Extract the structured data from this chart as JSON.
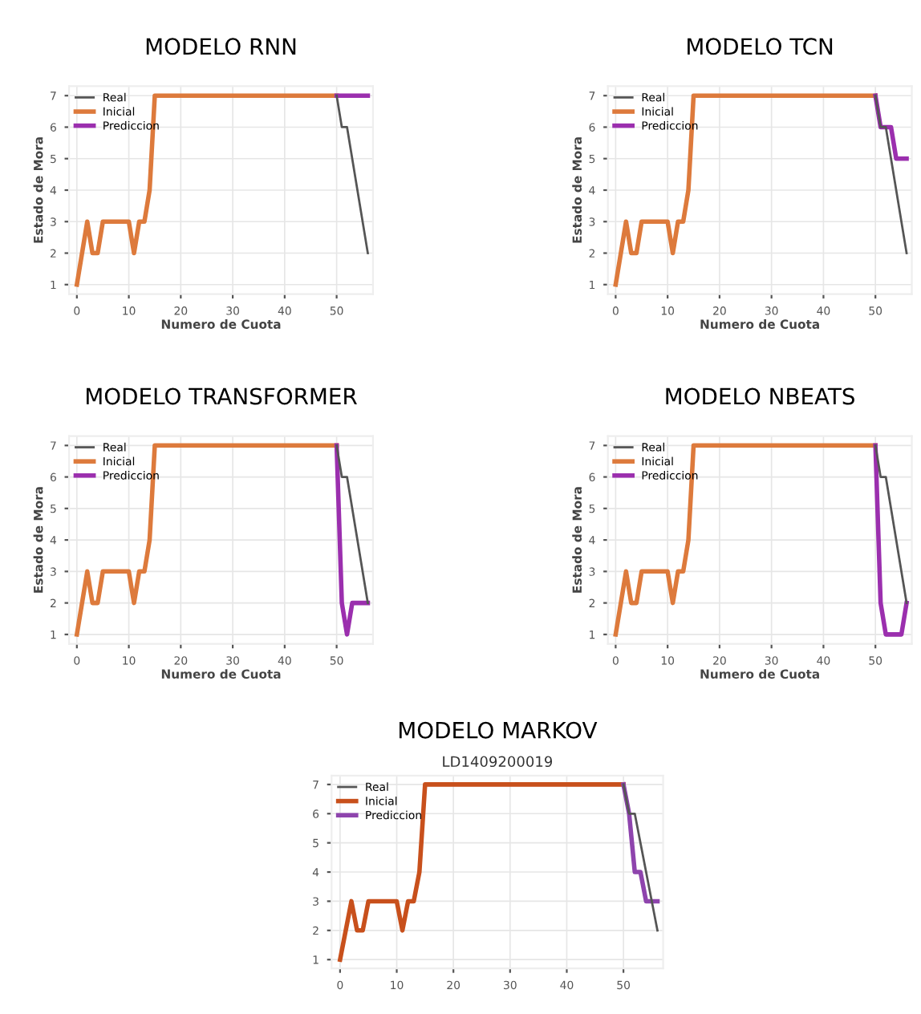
{
  "chart_data": [
    {
      "type": "line",
      "title": "MODELO RNN",
      "xlabel": "Numero de Cuota",
      "ylabel": "Estado de Mora",
      "xlim": [
        -1.5,
        57
      ],
      "ylim": [
        0.7,
        7.3
      ],
      "xticks": [
        0,
        10,
        20,
        30,
        40,
        50
      ],
      "yticks": [
        1,
        2,
        3,
        4,
        5,
        6,
        7
      ],
      "grid": true,
      "legend": "top left",
      "series": [
        {
          "name": "Real",
          "color": "#555555",
          "x": [
            50,
            51,
            52,
            56
          ],
          "values": [
            7,
            6,
            6,
            2
          ]
        },
        {
          "name": "Inicial",
          "color": "#dd7a3c",
          "x": [
            0,
            2,
            3,
            4,
            5,
            10,
            11,
            12,
            13,
            14,
            15,
            50
          ],
          "values": [
            1,
            3,
            2,
            2,
            3,
            3,
            2,
            3,
            3,
            4,
            7,
            7
          ]
        },
        {
          "name": "Prediccion",
          "color": "#9b2fae",
          "x": [
            50,
            56
          ],
          "values": [
            7,
            7
          ]
        }
      ]
    },
    {
      "type": "line",
      "title": "MODELO TCN",
      "xlabel": "Numero de Cuota",
      "ylabel": "Estado de Mora",
      "xlim": [
        -1.5,
        57
      ],
      "ylim": [
        0.7,
        7.3
      ],
      "xticks": [
        0,
        10,
        20,
        30,
        40,
        50
      ],
      "yticks": [
        1,
        2,
        3,
        4,
        5,
        6,
        7
      ],
      "grid": true,
      "legend": "top left",
      "series": [
        {
          "name": "Real",
          "color": "#555555",
          "x": [
            50,
            51,
            52,
            56
          ],
          "values": [
            7,
            6,
            6,
            2
          ]
        },
        {
          "name": "Inicial",
          "color": "#dd7a3c",
          "x": [
            0,
            2,
            3,
            4,
            5,
            10,
            11,
            12,
            13,
            14,
            15,
            50
          ],
          "values": [
            1,
            3,
            2,
            2,
            3,
            3,
            2,
            3,
            3,
            4,
            7,
            7
          ]
        },
        {
          "name": "Prediccion",
          "color": "#9b2fae",
          "x": [
            50,
            51,
            53,
            54,
            56
          ],
          "values": [
            7,
            6,
            6,
            5,
            5
          ]
        }
      ]
    },
    {
      "type": "line",
      "title": "MODELO TRANSFORMER",
      "xlabel": "Numero de Cuota",
      "ylabel": "Estado de Mora",
      "xlim": [
        -1.5,
        57
      ],
      "ylim": [
        0.7,
        7.3
      ],
      "xticks": [
        0,
        10,
        20,
        30,
        40,
        50
      ],
      "yticks": [
        1,
        2,
        3,
        4,
        5,
        6,
        7
      ],
      "grid": true,
      "legend": "top left",
      "series": [
        {
          "name": "Real",
          "color": "#555555",
          "x": [
            50,
            51,
            52,
            56
          ],
          "values": [
            7,
            6,
            6,
            2
          ]
        },
        {
          "name": "Inicial",
          "color": "#dd7a3c",
          "x": [
            0,
            2,
            3,
            4,
            5,
            10,
            11,
            12,
            13,
            14,
            15,
            50
          ],
          "values": [
            1,
            3,
            2,
            2,
            3,
            3,
            2,
            3,
            3,
            4,
            7,
            7
          ]
        },
        {
          "name": "Prediccion",
          "color": "#9b2fae",
          "x": [
            50,
            51,
            52,
            53,
            56
          ],
          "values": [
            7,
            2,
            1,
            2,
            2
          ]
        }
      ]
    },
    {
      "type": "line",
      "title": "MODELO NBEATS",
      "xlabel": "Numero de Cuota",
      "ylabel": "Estado de Mora",
      "xlim": [
        -1.5,
        57
      ],
      "ylim": [
        0.7,
        7.3
      ],
      "xticks": [
        0,
        10,
        20,
        30,
        40,
        50
      ],
      "yticks": [
        1,
        2,
        3,
        4,
        5,
        6,
        7
      ],
      "grid": true,
      "legend": "top left",
      "series": [
        {
          "name": "Real",
          "color": "#555555",
          "x": [
            50,
            51,
            52,
            56
          ],
          "values": [
            7,
            6,
            6,
            2
          ]
        },
        {
          "name": "Inicial",
          "color": "#dd7a3c",
          "x": [
            0,
            2,
            3,
            4,
            5,
            10,
            11,
            12,
            13,
            14,
            15,
            50
          ],
          "values": [
            1,
            3,
            2,
            2,
            3,
            3,
            2,
            3,
            3,
            4,
            7,
            7
          ]
        },
        {
          "name": "Prediccion",
          "color": "#9b2fae",
          "x": [
            50,
            51,
            52,
            55,
            56
          ],
          "values": [
            7,
            2,
            1,
            1,
            2
          ]
        }
      ]
    },
    {
      "type": "line",
      "title": "MODELO MARKOV",
      "subtitle": "LD1409200019",
      "xlim": [
        -1.5,
        57
      ],
      "ylim": [
        0.7,
        7.3
      ],
      "xticks": [
        0,
        10,
        20,
        30,
        40,
        50
      ],
      "yticks": [
        1,
        2,
        3,
        4,
        5,
        6,
        7
      ],
      "grid": true,
      "legend": "top left",
      "series": [
        {
          "name": "Real",
          "color": "#555555",
          "x": [
            50,
            51,
            52,
            56
          ],
          "values": [
            7,
            6,
            6,
            2
          ]
        },
        {
          "name": "Inicial",
          "color": "#c8501c",
          "x": [
            0,
            2,
            3,
            4,
            5,
            10,
            11,
            12,
            13,
            14,
            15,
            50
          ],
          "values": [
            1,
            3,
            2,
            2,
            3,
            3,
            2,
            3,
            3,
            4,
            7,
            7
          ]
        },
        {
          "name": "Prediccion",
          "color": "#8e44ad",
          "x": [
            50,
            51,
            52,
            53,
            54,
            56
          ],
          "values": [
            7,
            6,
            4,
            4,
            3,
            3
          ]
        }
      ]
    }
  ]
}
